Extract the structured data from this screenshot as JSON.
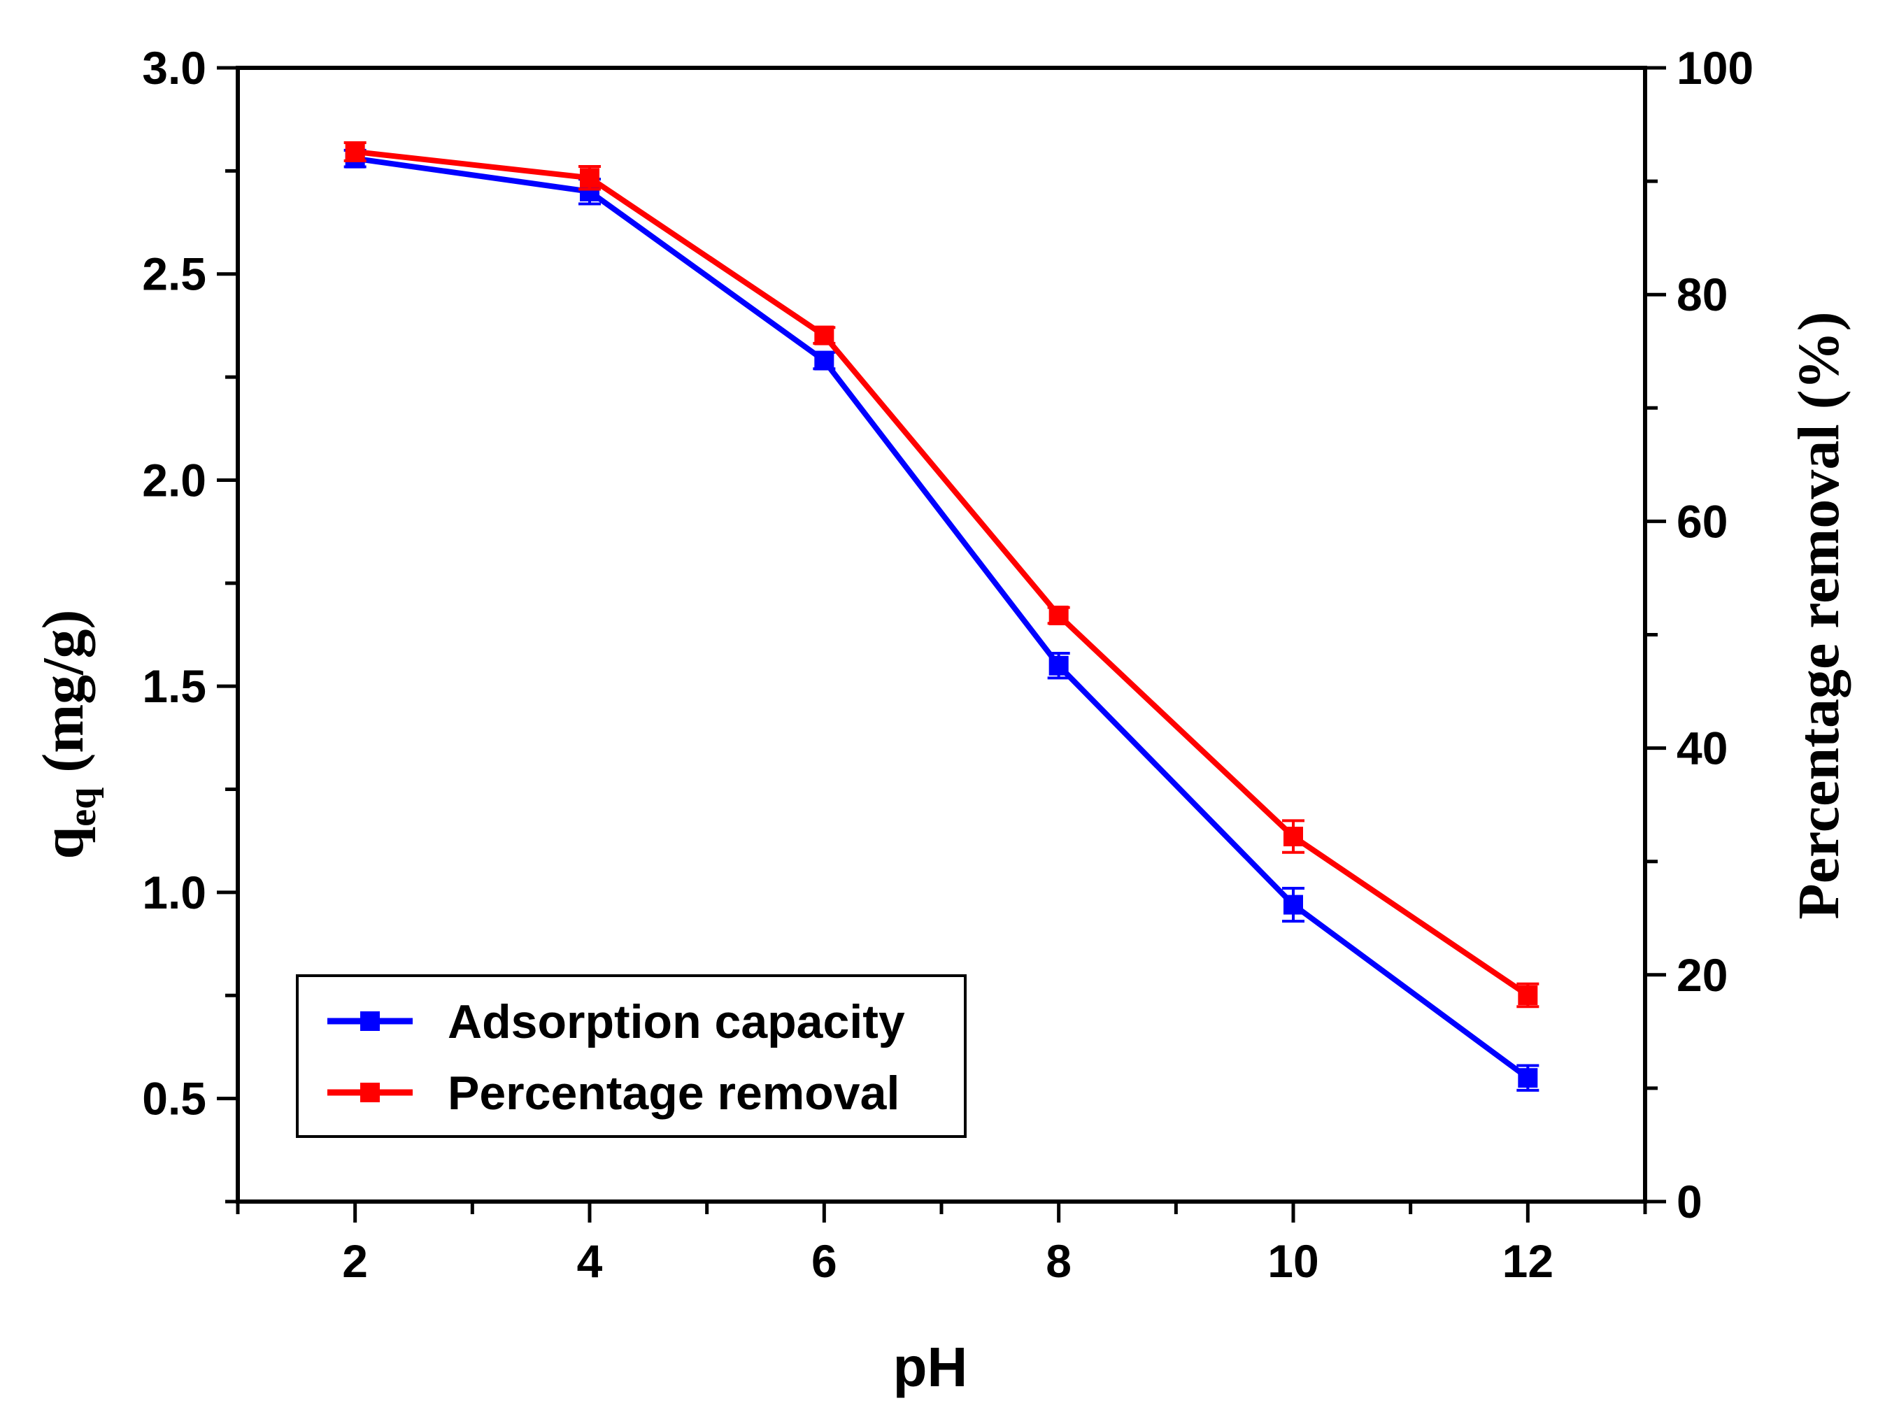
{
  "chart_data": {
    "type": "line",
    "title": "",
    "xlabel": "pH",
    "ylabel_left": {
      "main": "q",
      "sub": "eq",
      "units": " (mg/g)"
    },
    "ylabel_right": "Percentage removal (%)",
    "x": [
      2,
      4,
      6,
      8,
      10,
      12
    ],
    "xlim": [
      1,
      13
    ],
    "ylim_left": [
      0.25,
      3.0
    ],
    "ylim_right": [
      0,
      100
    ],
    "x_ticks": [
      2,
      4,
      6,
      8,
      10,
      12
    ],
    "x_tick_labels": [
      "2",
      "4",
      "6",
      "8",
      "10",
      "12"
    ],
    "y_left_ticks": [
      0.5,
      1.0,
      1.5,
      2.0,
      2.5,
      3.0
    ],
    "y_left_tick_labels": [
      "0.5",
      "1.0",
      "1.5",
      "2.0",
      "2.5",
      "3.0"
    ],
    "y_right_ticks": [
      0,
      20,
      40,
      60,
      80,
      100
    ],
    "y_right_tick_labels": [
      "0",
      "20",
      "40",
      "60",
      "80",
      "100"
    ],
    "grid": false,
    "legend_position": "bottom-left",
    "series": [
      {
        "name": "Adsorption capacity",
        "axis": "left",
        "color": "#0000ff",
        "marker": "square",
        "values": [
          2.78,
          2.7,
          2.29,
          1.55,
          0.97,
          0.55
        ],
        "errors": [
          0.02,
          0.03,
          0.02,
          0.03,
          0.04,
          0.03
        ]
      },
      {
        "name": "Percentage removal",
        "axis": "right",
        "color": "#ff0000",
        "marker": "square",
        "values": [
          92.6,
          90.3,
          76.4,
          51.7,
          32.2,
          18.2
        ],
        "errors": [
          0.8,
          1.0,
          0.7,
          0.7,
          1.4,
          1.0
        ]
      }
    ]
  }
}
